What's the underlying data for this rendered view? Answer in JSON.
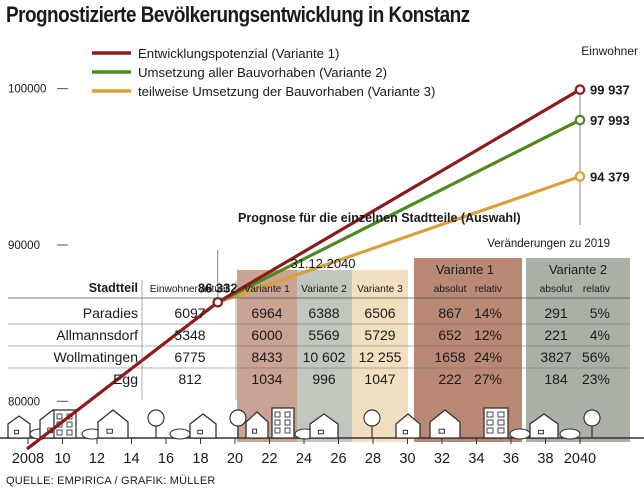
{
  "title": "Prognostizierte Bevölkerungsentwicklung in Konstanz",
  "source": "QUELLE: EMPIRICA / GRAFIK: MÜLLER",
  "colors": {
    "variante1": "#8b1a1a",
    "variante2": "#4c8a1e",
    "variante3": "#d9a03a",
    "bg_variante1": "#c9a393",
    "bg_variante2": "#c2c7bd",
    "bg_variante3": "#f2dfc0",
    "bg_v1_block": "#b98976",
    "bg_v2_block": "#aab0a6"
  },
  "chart_data": {
    "type": "line",
    "title": "Prognostizierte Bevölkerungsentwicklung in Konstanz",
    "unit_label": "Einwohner",
    "y_ticks": [
      "100000",
      "90000",
      "80000"
    ],
    "y_tick_values": [
      100000,
      90000,
      80000
    ],
    "ylim": [
      76500,
      101800
    ],
    "xlim": [
      2008,
      2040
    ],
    "x_ticks": [
      "2008",
      "10",
      "12",
      "14",
      "16",
      "18",
      "20",
      "22",
      "24",
      "26",
      "28",
      "30",
      "32",
      "34",
      "36",
      "38",
      "2040"
    ],
    "x_tick_values": [
      2008,
      2010,
      2012,
      2014,
      2016,
      2018,
      2020,
      2022,
      2024,
      2026,
      2028,
      2030,
      2032,
      2034,
      2036,
      2038,
      2040
    ],
    "start_year": 2008,
    "start_value": 77000,
    "branch_year": 2019,
    "branch_value": 86332,
    "branch_label": "86 332",
    "end_year": 2040,
    "series": [
      {
        "name": "Entwicklungspotenzial (Variante 1)",
        "key": "variante1",
        "end_value": 99937,
        "end_label": "99 937"
      },
      {
        "name": "Umsetzung aller Bauvorhaben (Variante 2)",
        "key": "variante2",
        "end_value": 97993,
        "end_label": "97 993"
      },
      {
        "name": "teilweise Umsetzung der Bauvorhaben (Variante 3)",
        "key": "variante3",
        "end_value": 94379,
        "end_label": "94 379"
      }
    ]
  },
  "table": {
    "heading": "Prognose für die einzelnen Stadtteile (Auswahl)",
    "changes_heading": "Veränderungen zu 2019",
    "date_heading": "31.12.2040",
    "variante1_heading": "Variante 1",
    "variante2_heading": "Variante 2",
    "columns": [
      "Stadtteil",
      "Einwohner aktuell",
      "Variante 1",
      "Variante 2",
      "Variante 3",
      "absolut",
      "relativ",
      "absolut",
      "relativ"
    ],
    "rows": [
      [
        "Paradies",
        "6097",
        "6964",
        "6388",
        "6506",
        "867",
        "14%",
        "291",
        "5%"
      ],
      [
        "Allmannsdorf",
        "5348",
        "6000",
        "5569",
        "5729",
        "652",
        "12%",
        "221",
        "4%"
      ],
      [
        "Wollmatingen",
        "6775",
        "8433",
        "10 602",
        "12 255",
        "1658",
        "24%",
        "3827",
        "56%"
      ],
      [
        "Egg",
        "812",
        "1034",
        "996",
        "1047",
        "222",
        "27%",
        "184",
        "23%"
      ]
    ]
  }
}
